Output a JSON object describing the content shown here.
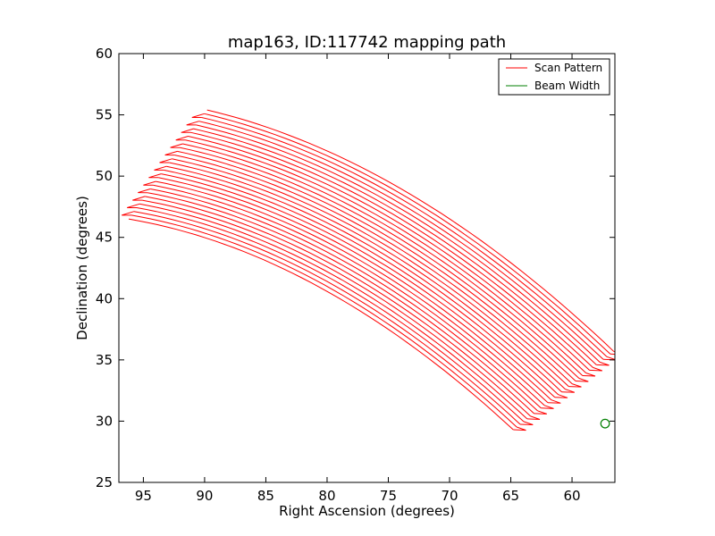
{
  "chart_data": {
    "type": "line",
    "title": "map163, ID:117742 mapping path",
    "xlabel": "Right Ascension (degrees)",
    "ylabel": "Declination (degrees)",
    "xlim": [
      97,
      56.5
    ],
    "ylim": [
      25,
      60
    ],
    "x_inverted": true,
    "x_ticks": [
      95,
      90,
      85,
      80,
      75,
      70,
      65,
      60
    ],
    "x_tick_labels": [
      "95",
      "90",
      "85",
      "80",
      "75",
      "70",
      "65",
      "60"
    ],
    "y_ticks": [
      25,
      30,
      35,
      40,
      45,
      50,
      55,
      60
    ],
    "y_tick_labels": [
      "25",
      "30",
      "35",
      "40",
      "45",
      "50",
      "55",
      "60"
    ],
    "grid": false,
    "legend_position": "top-right",
    "series": [
      {
        "name": "Scan Pattern",
        "color": "#ff0000",
        "kind": "raster-scan",
        "num_scan_lines": 30,
        "first_line_start": [
          96.2,
          46.5
        ],
        "first_line_end": [
          64.8,
          29.3
        ],
        "last_line_start": [
          89.8,
          55.4
        ],
        "last_line_end": [
          56.6,
          35.7
        ],
        "line_midpoint_sag_deg": 5.4
      },
      {
        "name": "Beam Width",
        "color": "#007f00",
        "kind": "circle",
        "center": [
          57.3,
          29.8
        ],
        "radius_deg": 0.35
      }
    ]
  }
}
